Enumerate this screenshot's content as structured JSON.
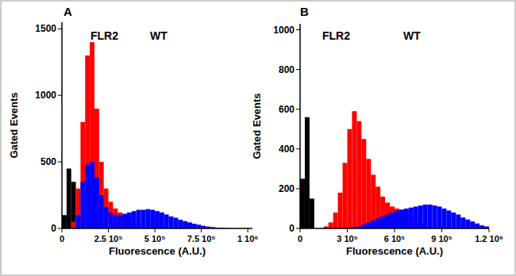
{
  "chart_data": [
    {
      "type": "histogram",
      "title": "A",
      "x_label": "Fluorescence (A.U.)",
      "y_label": "Gated Events",
      "bins": [
        0,
        25000,
        50000,
        75000,
        100000,
        125000,
        150000,
        175000,
        200000,
        225000,
        250000,
        275000,
        300000,
        325000,
        350000,
        375000,
        400000,
        425000,
        450000,
        475000,
        500000,
        525000,
        550000,
        575000,
        600000,
        625000,
        650000,
        675000,
        700000,
        725000,
        750000,
        775000,
        800000,
        825000,
        850000,
        875000,
        900000,
        925000,
        950000,
        975000,
        1000000
      ],
      "series": [
        {
          "color": "#000000",
          "values": [
            100,
            450,
            350,
            0,
            0,
            0,
            0,
            0,
            0,
            0,
            0,
            0,
            0,
            0,
            0,
            0,
            0,
            0,
            0,
            0,
            0,
            0,
            0,
            0,
            0,
            0,
            0,
            0,
            0,
            0,
            0,
            0,
            0,
            0,
            0,
            0,
            0,
            0,
            0,
            0
          ]
        },
        {
          "name": "FLR2",
          "color": "#ff0000",
          "values": [
            0,
            0,
            50,
            300,
            800,
            1300,
            1400,
            900,
            500,
            300,
            200,
            150,
            120,
            100,
            80,
            50,
            30,
            10,
            0,
            0,
            0,
            0,
            0,
            0,
            0,
            0,
            0,
            0,
            0,
            0,
            0,
            0,
            0,
            0,
            0,
            0,
            0,
            0,
            0,
            0
          ]
        },
        {
          "name": "WT",
          "color": "#0000ff",
          "values": [
            0,
            0,
            0,
            100,
            350,
            480,
            500,
            380,
            250,
            160,
            120,
            100,
            100,
            110,
            120,
            130,
            140,
            140,
            145,
            140,
            130,
            120,
            105,
            90,
            80,
            65,
            55,
            45,
            35,
            28,
            20,
            14,
            10,
            6,
            4,
            2,
            0,
            0,
            0,
            0
          ]
        }
      ],
      "xlim": [
        0,
        1025000
      ],
      "ylim": [
        0,
        1550
      ],
      "xticks": [
        0,
        {
          "value": 250000,
          "label": "2.5 10⁵"
        },
        {
          "value": 500000,
          "label": "5 10⁵"
        },
        {
          "value": 750000,
          "label": "7.5 10⁵"
        },
        {
          "value": 1000000,
          "label": "1 10⁶"
        }
      ],
      "yticks": [
        0,
        500,
        1000,
        1500
      ]
    },
    {
      "type": "histogram",
      "title": "B",
      "x_label": "Fluorescence (A.U.)",
      "y_label": "Gated Events",
      "bins": [
        0,
        30000,
        60000,
        90000,
        120000,
        150000,
        180000,
        210000,
        240000,
        270000,
        300000,
        330000,
        360000,
        390000,
        420000,
        450000,
        480000,
        510000,
        540000,
        570000,
        600000,
        630000,
        660000,
        690000,
        720000,
        750000,
        780000,
        810000,
        840000,
        870000,
        900000,
        930000,
        960000,
        990000,
        1020000,
        1050000,
        1080000,
        1110000,
        1140000,
        1170000,
        1200000
      ],
      "series": [
        {
          "color": "#000000",
          "values": [
            250,
            560,
            150,
            0,
            0,
            0,
            0,
            0,
            0,
            0,
            0,
            0,
            0,
            0,
            0,
            0,
            0,
            0,
            0,
            0,
            0,
            0,
            0,
            0,
            0,
            0,
            0,
            0,
            0,
            0,
            0,
            0,
            0,
            0,
            0,
            0,
            0,
            0,
            0,
            0
          ]
        },
        {
          "name": "FLR2",
          "color": "#ff0000",
          "values": [
            0,
            0,
            0,
            0,
            0,
            10,
            30,
            80,
            180,
            330,
            500,
            590,
            540,
            450,
            350,
            270,
            210,
            160,
            130,
            110,
            100,
            90,
            70,
            50,
            35,
            20,
            10,
            5,
            0,
            0,
            0,
            0,
            0,
            0,
            0,
            0,
            0,
            0,
            0,
            0
          ]
        },
        {
          "name": "WT",
          "color": "#0000ff",
          "values": [
            0,
            0,
            0,
            0,
            0,
            0,
            0,
            0,
            0,
            0,
            0,
            5,
            10,
            20,
            30,
            40,
            50,
            60,
            70,
            80,
            90,
            95,
            100,
            105,
            110,
            115,
            120,
            120,
            115,
            110,
            100,
            90,
            80,
            70,
            55,
            45,
            35,
            25,
            15,
            10
          ]
        }
      ],
      "xlim": [
        0,
        1200000
      ],
      "ylim": [
        0,
        1030
      ],
      "xticks": [
        0,
        {
          "value": 300000,
          "label": "3 10⁵"
        },
        {
          "value": 600000,
          "label": "6 10⁵"
        },
        {
          "value": 900000,
          "label": "9 10⁵"
        },
        {
          "value": 1200000,
          "label": "1.2 10⁶"
        }
      ],
      "yticks": [
        0,
        200,
        400,
        600,
        800,
        1000
      ]
    }
  ]
}
